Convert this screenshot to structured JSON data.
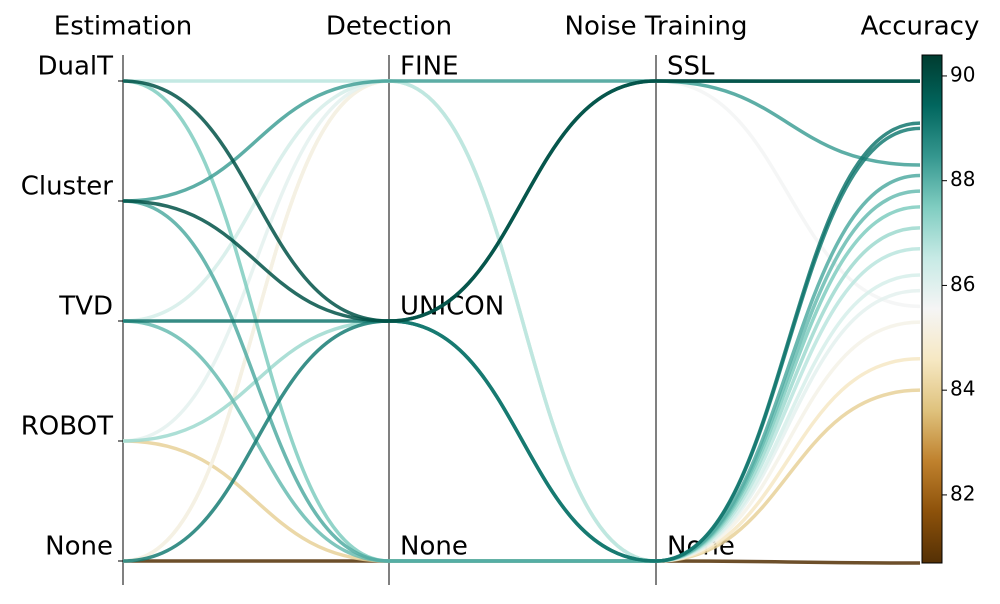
{
  "chart_data": {
    "type": "parallel",
    "dimensions": [
      {
        "label": "Estimation",
        "categories": [
          "DualT",
          "Cluster",
          "TVD",
          "ROBOT",
          "None"
        ]
      },
      {
        "label": "Detection",
        "categories": [
          "FINE",
          "UNICON",
          "None"
        ]
      },
      {
        "label": "Noise Training",
        "categories": [
          "SSL",
          "None"
        ]
      },
      {
        "label": "Accuracy",
        "ylim": [
          80.7,
          90.4
        ],
        "yticks": [
          82,
          84,
          86,
          88,
          90
        ]
      }
    ],
    "colormap": [
      "#543005",
      "#8c510a",
      "#bf812d",
      "#dfc27d",
      "#f6e8c3",
      "#f5f5f5",
      "#c7eae5",
      "#80cdc1",
      "#35978f",
      "#01665e",
      "#003c30"
    ],
    "records": [
      {
        "values": [
          "None",
          "None",
          "None",
          80.7
        ]
      },
      {
        "values": [
          "ROBOT",
          "None",
          "None",
          84.0
        ]
      },
      {
        "values": [
          "None",
          "FINE",
          "None",
          84.6
        ]
      },
      {
        "values": [
          "None",
          "FINE",
          "None",
          85.3
        ]
      },
      {
        "values": [
          "TVD",
          "FINE",
          "SSL",
          85.6
        ]
      },
      {
        "values": [
          "ROBOT",
          "FINE",
          "None",
          85.9
        ]
      },
      {
        "values": [
          "TVD",
          "FINE",
          "None",
          86.2
        ]
      },
      {
        "values": [
          "DualT",
          "FINE",
          "None",
          86.7
        ]
      },
      {
        "values": [
          "ROBOT",
          "UNICON",
          "None",
          87.1
        ]
      },
      {
        "values": [
          "DualT",
          "None",
          "None",
          87.5
        ]
      },
      {
        "values": [
          "TVD",
          "None",
          "None",
          87.8
        ]
      },
      {
        "values": [
          "Cluster",
          "None",
          "None",
          88.1
        ]
      },
      {
        "values": [
          "Cluster",
          "FINE",
          "SSL",
          88.3
        ]
      },
      {
        "values": [
          "None",
          "UNICON",
          "None",
          89.0
        ]
      },
      {
        "values": [
          "TVD",
          "UNICON",
          "None",
          89.1
        ]
      },
      {
        "values": [
          "DualT",
          "UNICON",
          "SSL",
          89.9
        ]
      },
      {
        "values": [
          "Cluster",
          "UNICON",
          "SSL",
          89.9
        ]
      }
    ]
  }
}
